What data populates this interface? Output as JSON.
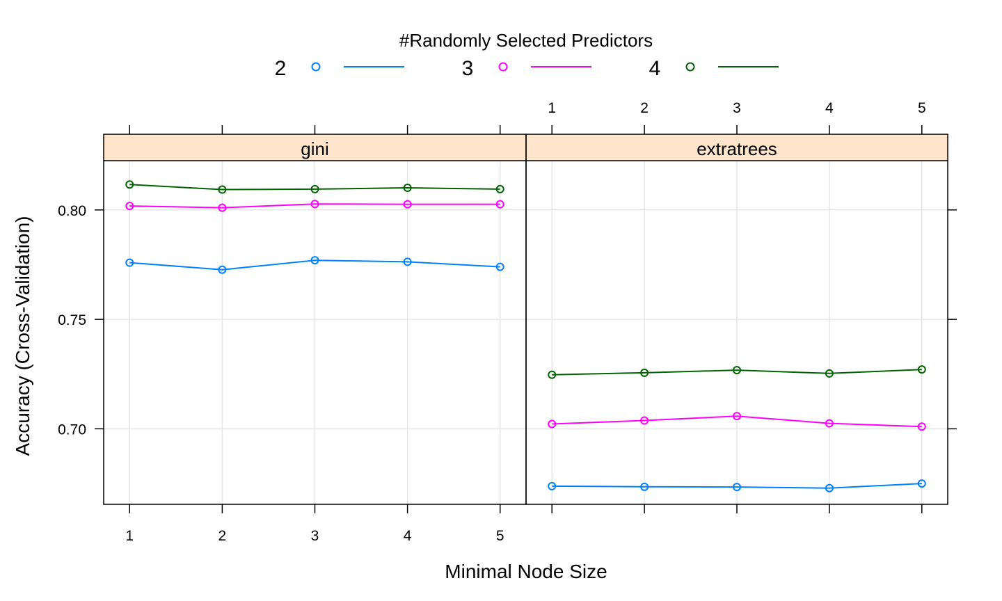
{
  "legend": {
    "title": "#Randomly Selected Predictors",
    "entries": [
      {
        "label": "2",
        "color": "#0080ff"
      },
      {
        "label": "3",
        "color": "#ff00ff"
      },
      {
        "label": "4",
        "color": "#006400"
      }
    ]
  },
  "chart_data": {
    "type": "line",
    "layout": "lattice panels, shared y-axis, legend at top",
    "xlabel": "Minimal Node Size",
    "ylabel": "Accuracy (Cross-Validation)",
    "x": [
      1,
      2,
      3,
      4,
      5
    ],
    "x_tick_labels": [
      "1",
      "2",
      "3",
      "4",
      "5"
    ],
    "xlim": [
      0.72,
      5.28
    ],
    "ylim": [
      0.6655,
      0.8225
    ],
    "y_ticks": [
      0.7,
      0.75,
      0.8
    ],
    "y_tick_labels": [
      "0.70",
      "0.75",
      "0.80"
    ],
    "grid": true,
    "colors": {
      "strip": "#ffe5cc",
      "grid": "#e6e6e6",
      "frame": "#000000"
    },
    "panels": [
      {
        "name": "gini",
        "series": [
          {
            "name": "2",
            "color": "#0080ff",
            "values": [
              0.7759,
              0.7727,
              0.777,
              0.7763,
              0.774
            ]
          },
          {
            "name": "3",
            "color": "#ff00ff",
            "values": [
              0.8018,
              0.801,
              0.8027,
              0.8026,
              0.8026
            ]
          },
          {
            "name": "4",
            "color": "#006400",
            "values": [
              0.8116,
              0.8093,
              0.8095,
              0.8101,
              0.8095
            ]
          }
        ]
      },
      {
        "name": "extratrees",
        "series": [
          {
            "name": "2",
            "color": "#0080ff",
            "values": [
              0.6738,
              0.6735,
              0.6734,
              0.6729,
              0.675
            ]
          },
          {
            "name": "3",
            "color": "#ff00ff",
            "values": [
              0.7022,
              0.7038,
              0.7058,
              0.7025,
              0.701
            ]
          },
          {
            "name": "4",
            "color": "#006400",
            "values": [
              0.7247,
              0.7256,
              0.7268,
              0.7253,
              0.7271
            ]
          }
        ]
      }
    ]
  }
}
